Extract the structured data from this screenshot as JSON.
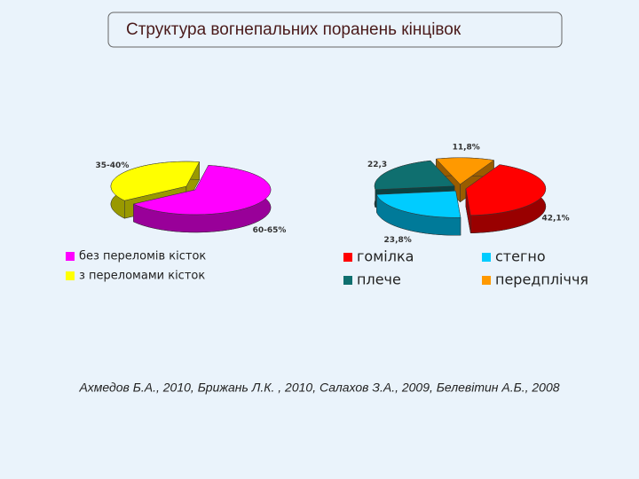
{
  "title": "Структура вогнепальних поранень кінцівок",
  "chart_data": [
    {
      "type": "pie",
      "categories": [
        "без переломів кісток",
        "з переломами кісток"
      ],
      "values": [
        62.5,
        37.5
      ],
      "value_labels": [
        "60-65%",
        "35-40%"
      ],
      "colors": [
        "#ff00ff",
        "#ffff00"
      ],
      "legend": "bottom"
    },
    {
      "type": "pie",
      "categories": [
        "гомілка",
        "стегно",
        "плече",
        "передпліччя"
      ],
      "values": [
        42.1,
        23.8,
        22.3,
        11.8
      ],
      "value_labels": [
        "42,1%",
        "23,8%",
        "22,3",
        "11,8%"
      ],
      "colors": [
        "#ff0000",
        "#00ccff",
        "#0f6f6f",
        "#ff9900"
      ],
      "legend": "bottom"
    }
  ],
  "footer": "Ахмедов Б.А., 2010, Брижань Л.К. , 2010, Салахов З.А., 2009, Белевітин А.Б., 2008"
}
